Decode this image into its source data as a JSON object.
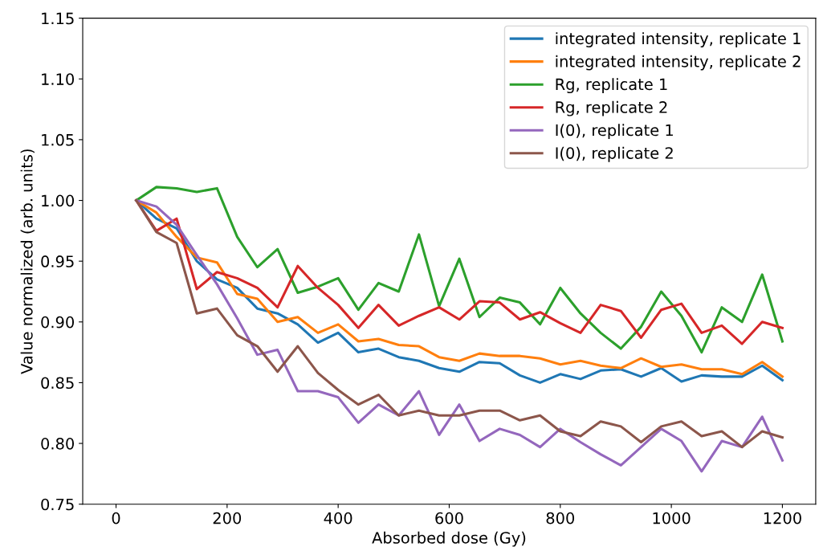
{
  "chart_data": {
    "type": "line",
    "xlabel": "Absorbed dose (Gy)",
    "ylabel": "Value normalized (arb. units)",
    "x": [
      36.4,
      72.7,
      109.1,
      145.5,
      181.8,
      218.2,
      254.5,
      290.9,
      327.3,
      363.6,
      400,
      436.4,
      472.7,
      509.1,
      545.5,
      581.8,
      618.2,
      654.5,
      690.9,
      727.3,
      763.6,
      800,
      836.4,
      872.7,
      909.1,
      945.5,
      981.8,
      1018.2,
      1054.5,
      1090.9,
      1127.3,
      1163.6,
      1200
    ],
    "series": [
      {
        "name": "integrated intensity, replicate 1",
        "color": "#1f77b4",
        "values": [
          1.0,
          0.985,
          0.977,
          0.95,
          0.935,
          0.928,
          0.911,
          0.907,
          0.898,
          0.883,
          0.891,
          0.875,
          0.878,
          0.871,
          0.868,
          0.862,
          0.859,
          0.867,
          0.866,
          0.856,
          0.85,
          0.857,
          0.853,
          0.86,
          0.861,
          0.855,
          0.862,
          0.851,
          0.856,
          0.855,
          0.855,
          0.864,
          0.852
        ]
      },
      {
        "name": "integrated intensity, replicate 2",
        "color": "#ff7f0e",
        "values": [
          1.0,
          0.99,
          0.97,
          0.953,
          0.949,
          0.923,
          0.919,
          0.9,
          0.904,
          0.891,
          0.898,
          0.884,
          0.886,
          0.881,
          0.88,
          0.871,
          0.868,
          0.874,
          0.872,
          0.872,
          0.87,
          0.865,
          0.868,
          0.864,
          0.862,
          0.87,
          0.863,
          0.865,
          0.861,
          0.861,
          0.857,
          0.867,
          0.855
        ]
      },
      {
        "name": "Rg, replicate 1",
        "color": "#2ca02c",
        "values": [
          1.0,
          1.011,
          1.01,
          1.007,
          1.01,
          0.97,
          0.945,
          0.96,
          0.924,
          0.929,
          0.936,
          0.91,
          0.932,
          0.925,
          0.972,
          0.913,
          0.952,
          0.904,
          0.92,
          0.916,
          0.898,
          0.928,
          0.907,
          0.891,
          0.878,
          0.896,
          0.925,
          0.905,
          0.875,
          0.912,
          0.9,
          0.939,
          0.884
        ]
      },
      {
        "name": "Rg, replicate 2",
        "color": "#d62728",
        "values": [
          1.0,
          0.975,
          0.985,
          0.927,
          0.941,
          0.936,
          0.928,
          0.912,
          0.946,
          0.928,
          0.914,
          0.895,
          0.914,
          0.897,
          0.905,
          0.912,
          0.902,
          0.917,
          0.916,
          0.902,
          0.908,
          0.899,
          0.891,
          0.914,
          0.909,
          0.887,
          0.91,
          0.915,
          0.891,
          0.897,
          0.882,
          0.9,
          0.895
        ]
      },
      {
        "name": "I(0), replicate 1",
        "color": "#9467bd",
        "values": [
          1.0,
          0.995,
          0.98,
          0.955,
          0.931,
          0.903,
          0.873,
          0.877,
          0.843,
          0.843,
          0.838,
          0.817,
          0.832,
          0.823,
          0.843,
          0.807,
          0.832,
          0.802,
          0.812,
          0.807,
          0.797,
          0.812,
          0.801,
          0.791,
          0.782,
          0.797,
          0.812,
          0.802,
          0.777,
          0.802,
          0.797,
          0.822,
          0.786
        ]
      },
      {
        "name": "I(0), replicate 2",
        "color": "#8c564b",
        "values": [
          1.0,
          0.974,
          0.965,
          0.907,
          0.911,
          0.889,
          0.88,
          0.859,
          0.88,
          0.858,
          0.844,
          0.832,
          0.84,
          0.823,
          0.827,
          0.823,
          0.823,
          0.827,
          0.827,
          0.819,
          0.823,
          0.81,
          0.806,
          0.818,
          0.814,
          0.801,
          0.814,
          0.818,
          0.806,
          0.81,
          0.797,
          0.81,
          0.805
        ]
      }
    ],
    "xlim": [
      -60,
      1260
    ],
    "xticks": [
      0,
      200,
      400,
      600,
      800,
      1000,
      1200
    ],
    "ylim": [
      0.75,
      1.15
    ],
    "yticks": [
      {
        "value": 0.75,
        "label": "0.75"
      },
      {
        "value": 0.8,
        "label": "0.80"
      },
      {
        "value": 0.85,
        "label": "0.85"
      },
      {
        "value": 0.9,
        "label": "0.90"
      },
      {
        "value": 0.95,
        "label": "0.95"
      },
      {
        "value": 1.0,
        "label": "1.00"
      },
      {
        "value": 1.05,
        "label": "1.05"
      },
      {
        "value": 1.1,
        "label": "1.10"
      },
      {
        "value": 1.15,
        "label": "1.15"
      }
    ],
    "legend": "top right",
    "grid": false,
    "marker": "none",
    "line_style": "solid"
  }
}
